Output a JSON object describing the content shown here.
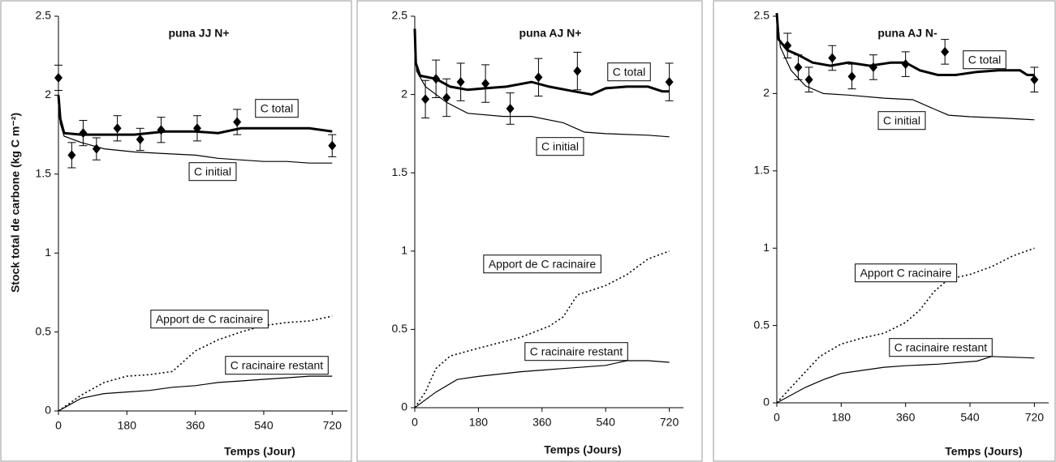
{
  "chart_data": [
    {
      "type": "line",
      "title": "puna JJ N+",
      "xlabel": "Temps (Jour)",
      "ylabel": "Stock total de carbone (kg C m⁻²)",
      "xlim": [
        0,
        760
      ],
      "ylim": [
        0,
        2.5
      ],
      "xticks": [
        0,
        180,
        360,
        540,
        720
      ],
      "yticks": [
        0,
        0.5,
        1,
        1.5,
        2,
        2.5
      ],
      "series": [
        {
          "name": "C total",
          "color": "#000000",
          "style": "thick",
          "x": [
            0,
            5,
            15,
            60,
            120,
            200,
            280,
            360,
            420,
            480,
            540,
            600,
            660,
            720
          ],
          "values": [
            2.0,
            1.85,
            1.76,
            1.75,
            1.75,
            1.75,
            1.77,
            1.77,
            1.76,
            1.79,
            1.79,
            1.79,
            1.79,
            1.77
          ]
        },
        {
          "name": "C initial",
          "color": "#000000",
          "style": "thin",
          "x": [
            0,
            5,
            15,
            60,
            120,
            200,
            280,
            360,
            420,
            480,
            540,
            600,
            660,
            720
          ],
          "values": [
            2.0,
            1.82,
            1.74,
            1.7,
            1.66,
            1.64,
            1.63,
            1.62,
            1.6,
            1.59,
            1.58,
            1.58,
            1.57,
            1.57
          ]
        },
        {
          "name": "Apport de C racinaire",
          "color": "#000000",
          "style": "dotted",
          "x": [
            0,
            30,
            60,
            120,
            180,
            240,
            300,
            360,
            420,
            480,
            540,
            600,
            660,
            720
          ],
          "values": [
            0,
            0.05,
            0.1,
            0.18,
            0.22,
            0.23,
            0.25,
            0.38,
            0.45,
            0.5,
            0.54,
            0.56,
            0.57,
            0.6
          ]
        },
        {
          "name": "C racinaire restant",
          "color": "#000000",
          "style": "thin",
          "x": [
            0,
            30,
            60,
            120,
            180,
            240,
            300,
            360,
            420,
            480,
            540,
            600,
            660,
            720
          ],
          "values": [
            0,
            0.04,
            0.08,
            0.11,
            0.12,
            0.13,
            0.15,
            0.16,
            0.18,
            0.19,
            0.2,
            0.21,
            0.22,
            0.22
          ]
        }
      ],
      "points": {
        "x": [
          0,
          35,
          65,
          100,
          155,
          215,
          270,
          365,
          470,
          720
        ],
        "values": [
          2.11,
          1.62,
          1.76,
          1.66,
          1.79,
          1.72,
          1.78,
          1.79,
          1.83,
          1.68
        ],
        "errors": [
          0.08,
          0.08,
          0.08,
          0.07,
          0.08,
          0.07,
          0.08,
          0.08,
          0.08,
          0.07
        ]
      }
    },
    {
      "type": "line",
      "title": "puna AJ N+",
      "xlabel": "Temps  (Jours)",
      "xlim": [
        0,
        760
      ],
      "ylim": [
        0,
        2.5
      ],
      "xticks": [
        0,
        180,
        360,
        540,
        720
      ],
      "yticks": [
        0,
        0.5,
        1,
        1.5,
        2,
        2.5
      ],
      "series": [
        {
          "name": "C total",
          "color": "#000000",
          "style": "thick",
          "x": [
            0,
            3,
            15,
            60,
            100,
            150,
            200,
            260,
            330,
            380,
            450,
            500,
            540,
            600,
            660,
            700,
            720
          ],
          "values": [
            2.42,
            2.2,
            2.12,
            2.1,
            2.05,
            2.03,
            2.04,
            2.05,
            2.08,
            2.05,
            2.02,
            2.0,
            2.04,
            2.05,
            2.05,
            2.02,
            2.02
          ]
        },
        {
          "name": "C initial",
          "color": "#000000",
          "style": "thin",
          "x": [
            0,
            5,
            30,
            90,
            150,
            250,
            330,
            420,
            480,
            540,
            660,
            720
          ],
          "values": [
            2.42,
            2.15,
            2.05,
            1.95,
            1.88,
            1.86,
            1.86,
            1.82,
            1.76,
            1.75,
            1.74,
            1.73
          ]
        },
        {
          "name": "Apport de C racinaire",
          "color": "#000000",
          "style": "dotted",
          "x": [
            0,
            30,
            60,
            100,
            180,
            300,
            380,
            420,
            460,
            540,
            600,
            660,
            720
          ],
          "values": [
            0,
            0.1,
            0.25,
            0.33,
            0.38,
            0.45,
            0.52,
            0.58,
            0.72,
            0.78,
            0.85,
            0.95,
            1.0
          ]
        },
        {
          "name": "C racinaire restant",
          "color": "#000000",
          "style": "thin",
          "x": [
            0,
            30,
            60,
            120,
            180,
            300,
            360,
            420,
            540,
            600,
            660,
            720
          ],
          "values": [
            0,
            0.05,
            0.1,
            0.18,
            0.2,
            0.23,
            0.24,
            0.25,
            0.27,
            0.3,
            0.3,
            0.29
          ]
        }
      ],
      "points": {
        "x": [
          30,
          60,
          90,
          130,
          200,
          270,
          350,
          460,
          720
        ],
        "values": [
          1.97,
          2.1,
          1.98,
          2.08,
          2.07,
          1.91,
          2.11,
          2.15,
          2.08
        ],
        "errors": [
          0.12,
          0.12,
          0.12,
          0.12,
          0.12,
          0.1,
          0.12,
          0.12,
          0.12
        ]
      }
    },
    {
      "type": "line",
      "title": "puna AJ N-",
      "xlabel": "Temps (Jours)",
      "xlim": [
        0,
        760
      ],
      "ylim": [
        0,
        2.5
      ],
      "xticks": [
        0,
        180,
        360,
        540,
        720
      ],
      "yticks": [
        0,
        0.5,
        1,
        1.5,
        2,
        2.5
      ],
      "series": [
        {
          "name": "C total",
          "color": "#000000",
          "style": "thick",
          "x": [
            0,
            5,
            30,
            60,
            100,
            150,
            200,
            260,
            320,
            360,
            400,
            450,
            500,
            560,
            620,
            680,
            700,
            720
          ],
          "values": [
            2.52,
            2.35,
            2.28,
            2.25,
            2.2,
            2.18,
            2.2,
            2.18,
            2.2,
            2.2,
            2.15,
            2.12,
            2.12,
            2.14,
            2.15,
            2.15,
            2.12,
            2.12
          ]
        },
        {
          "name": "C initial",
          "color": "#000000",
          "style": "thin",
          "x": [
            0,
            10,
            40,
            80,
            130,
            200,
            300,
            380,
            440,
            480,
            540,
            640,
            720
          ],
          "values": [
            2.52,
            2.3,
            2.15,
            2.05,
            2.0,
            1.99,
            1.97,
            1.96,
            1.9,
            1.86,
            1.85,
            1.84,
            1.83
          ]
        },
        {
          "name": "Apport C racinaire",
          "color": "#000000",
          "style": "dotted",
          "x": [
            0,
            40,
            80,
            120,
            180,
            240,
            300,
            360,
            400,
            440,
            480,
            540,
            600,
            660,
            720
          ],
          "values": [
            0,
            0.1,
            0.2,
            0.3,
            0.38,
            0.42,
            0.45,
            0.52,
            0.6,
            0.72,
            0.8,
            0.83,
            0.88,
            0.95,
            1.0
          ]
        },
        {
          "name": "C racinaire restant",
          "color": "#000000",
          "style": "thin",
          "x": [
            0,
            40,
            80,
            130,
            180,
            240,
            300,
            360,
            450,
            560,
            600,
            720
          ],
          "values": [
            0,
            0.05,
            0.1,
            0.15,
            0.19,
            0.21,
            0.23,
            0.24,
            0.25,
            0.27,
            0.3,
            0.29
          ]
        }
      ],
      "points": {
        "x": [
          30,
          60,
          90,
          155,
          210,
          270,
          360,
          470,
          720
        ],
        "values": [
          2.31,
          2.17,
          2.09,
          2.23,
          2.11,
          2.17,
          2.19,
          2.27,
          2.09
        ],
        "errors": [
          0.08,
          0.08,
          0.08,
          0.08,
          0.08,
          0.08,
          0.08,
          0.08,
          0.08
        ]
      }
    }
  ]
}
